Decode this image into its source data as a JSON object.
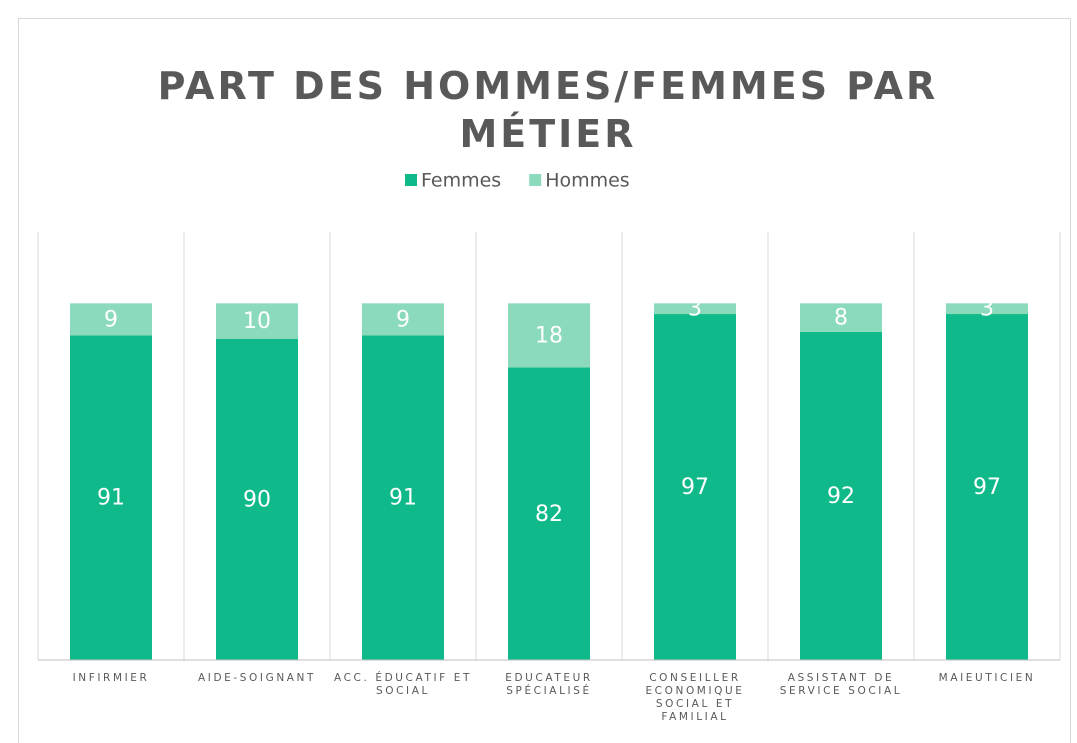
{
  "chart_data": {
    "type": "stacked_bar",
    "title": "PART DES HOMMES/FEMMES PAR MÉTIER",
    "categories": [
      "INFIRMIER",
      "AIDE-SOIGNANT",
      "ACC. ÉDUCATIF ET SOCIAL",
      "EDUCATEUR SPÉCIALISÉ",
      "CONSEILLER ECONOMIQUE SOCIAL ET FAMILIAL",
      "ASSISTANT DE SERVICE SOCIAL",
      "MAIEUTICIEN"
    ],
    "series": [
      {
        "name": "Femmes",
        "color": "#10b98a",
        "values": [
          91,
          90,
          91,
          82,
          97,
          92,
          97
        ]
      },
      {
        "name": "Hommes",
        "color": "#8bdabc",
        "values": [
          9,
          10,
          9,
          18,
          3,
          8,
          3
        ]
      }
    ],
    "ylim": [
      0,
      120
    ],
    "legend": "top"
  }
}
